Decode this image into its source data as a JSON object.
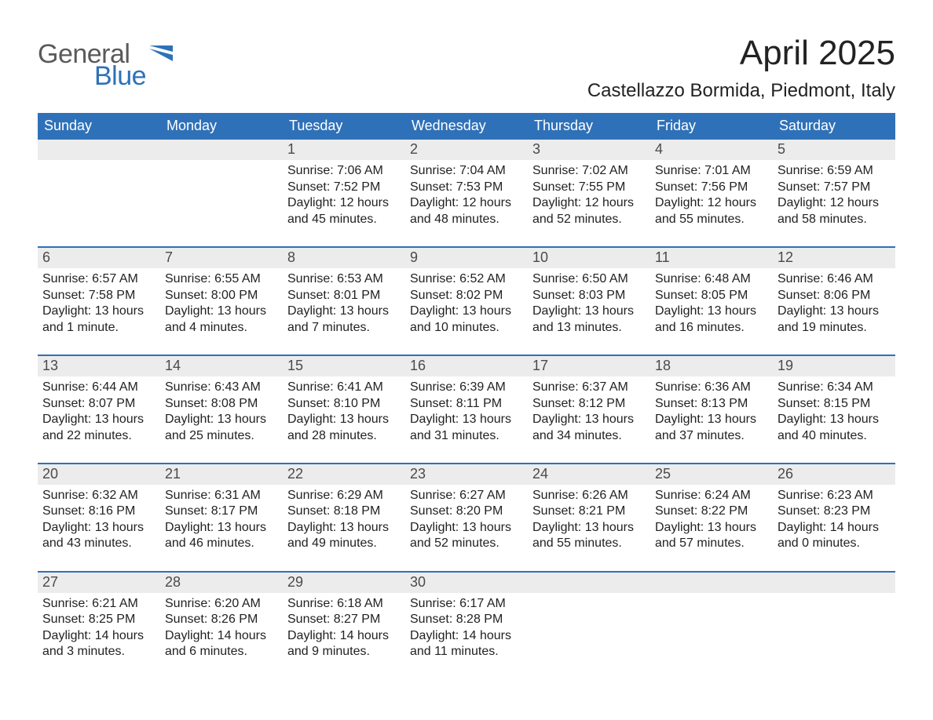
{
  "brand": {
    "word1": "General",
    "word2": "Blue",
    "color_gray": "#5a5a5a",
    "color_blue": "#2f71b8"
  },
  "title": "April 2025",
  "subtitle": "Castellazzo Bormida, Piedmont, Italy",
  "colors": {
    "header_bg": "#2f71b8",
    "header_text": "#ffffff",
    "daynum_bg": "#ececec",
    "daynum_text": "#4a4a4a",
    "body_text": "#222222",
    "page_bg": "#ffffff",
    "row_divider": "#2f71b8"
  },
  "typography": {
    "title_fontsize": 44,
    "subtitle_fontsize": 24,
    "dayheader_fontsize": 18,
    "daynum_fontsize": 18,
    "body_fontsize": 16,
    "font_family": "Arial"
  },
  "day_headers": [
    "Sunday",
    "Monday",
    "Tuesday",
    "Wednesday",
    "Thursday",
    "Friday",
    "Saturday"
  ],
  "weeks": [
    [
      {
        "empty": true
      },
      {
        "empty": true
      },
      {
        "num": "1",
        "sunrise": "Sunrise: 7:06 AM",
        "sunset": "Sunset: 7:52 PM",
        "daylight": "Daylight: 12 hours and 45 minutes."
      },
      {
        "num": "2",
        "sunrise": "Sunrise: 7:04 AM",
        "sunset": "Sunset: 7:53 PM",
        "daylight": "Daylight: 12 hours and 48 minutes."
      },
      {
        "num": "3",
        "sunrise": "Sunrise: 7:02 AM",
        "sunset": "Sunset: 7:55 PM",
        "daylight": "Daylight: 12 hours and 52 minutes."
      },
      {
        "num": "4",
        "sunrise": "Sunrise: 7:01 AM",
        "sunset": "Sunset: 7:56 PM",
        "daylight": "Daylight: 12 hours and 55 minutes."
      },
      {
        "num": "5",
        "sunrise": "Sunrise: 6:59 AM",
        "sunset": "Sunset: 7:57 PM",
        "daylight": "Daylight: 12 hours and 58 minutes."
      }
    ],
    [
      {
        "num": "6",
        "sunrise": "Sunrise: 6:57 AM",
        "sunset": "Sunset: 7:58 PM",
        "daylight": "Daylight: 13 hours and 1 minute."
      },
      {
        "num": "7",
        "sunrise": "Sunrise: 6:55 AM",
        "sunset": "Sunset: 8:00 PM",
        "daylight": "Daylight: 13 hours and 4 minutes."
      },
      {
        "num": "8",
        "sunrise": "Sunrise: 6:53 AM",
        "sunset": "Sunset: 8:01 PM",
        "daylight": "Daylight: 13 hours and 7 minutes."
      },
      {
        "num": "9",
        "sunrise": "Sunrise: 6:52 AM",
        "sunset": "Sunset: 8:02 PM",
        "daylight": "Daylight: 13 hours and 10 minutes."
      },
      {
        "num": "10",
        "sunrise": "Sunrise: 6:50 AM",
        "sunset": "Sunset: 8:03 PM",
        "daylight": "Daylight: 13 hours and 13 minutes."
      },
      {
        "num": "11",
        "sunrise": "Sunrise: 6:48 AM",
        "sunset": "Sunset: 8:05 PM",
        "daylight": "Daylight: 13 hours and 16 minutes."
      },
      {
        "num": "12",
        "sunrise": "Sunrise: 6:46 AM",
        "sunset": "Sunset: 8:06 PM",
        "daylight": "Daylight: 13 hours and 19 minutes."
      }
    ],
    [
      {
        "num": "13",
        "sunrise": "Sunrise: 6:44 AM",
        "sunset": "Sunset: 8:07 PM",
        "daylight": "Daylight: 13 hours and 22 minutes."
      },
      {
        "num": "14",
        "sunrise": "Sunrise: 6:43 AM",
        "sunset": "Sunset: 8:08 PM",
        "daylight": "Daylight: 13 hours and 25 minutes."
      },
      {
        "num": "15",
        "sunrise": "Sunrise: 6:41 AM",
        "sunset": "Sunset: 8:10 PM",
        "daylight": "Daylight: 13 hours and 28 minutes."
      },
      {
        "num": "16",
        "sunrise": "Sunrise: 6:39 AM",
        "sunset": "Sunset: 8:11 PM",
        "daylight": "Daylight: 13 hours and 31 minutes."
      },
      {
        "num": "17",
        "sunrise": "Sunrise: 6:37 AM",
        "sunset": "Sunset: 8:12 PM",
        "daylight": "Daylight: 13 hours and 34 minutes."
      },
      {
        "num": "18",
        "sunrise": "Sunrise: 6:36 AM",
        "sunset": "Sunset: 8:13 PM",
        "daylight": "Daylight: 13 hours and 37 minutes."
      },
      {
        "num": "19",
        "sunrise": "Sunrise: 6:34 AM",
        "sunset": "Sunset: 8:15 PM",
        "daylight": "Daylight: 13 hours and 40 minutes."
      }
    ],
    [
      {
        "num": "20",
        "sunrise": "Sunrise: 6:32 AM",
        "sunset": "Sunset: 8:16 PM",
        "daylight": "Daylight: 13 hours and 43 minutes."
      },
      {
        "num": "21",
        "sunrise": "Sunrise: 6:31 AM",
        "sunset": "Sunset: 8:17 PM",
        "daylight": "Daylight: 13 hours and 46 minutes."
      },
      {
        "num": "22",
        "sunrise": "Sunrise: 6:29 AM",
        "sunset": "Sunset: 8:18 PM",
        "daylight": "Daylight: 13 hours and 49 minutes."
      },
      {
        "num": "23",
        "sunrise": "Sunrise: 6:27 AM",
        "sunset": "Sunset: 8:20 PM",
        "daylight": "Daylight: 13 hours and 52 minutes."
      },
      {
        "num": "24",
        "sunrise": "Sunrise: 6:26 AM",
        "sunset": "Sunset: 8:21 PM",
        "daylight": "Daylight: 13 hours and 55 minutes."
      },
      {
        "num": "25",
        "sunrise": "Sunrise: 6:24 AM",
        "sunset": "Sunset: 8:22 PM",
        "daylight": "Daylight: 13 hours and 57 minutes."
      },
      {
        "num": "26",
        "sunrise": "Sunrise: 6:23 AM",
        "sunset": "Sunset: 8:23 PM",
        "daylight": "Daylight: 14 hours and 0 minutes."
      }
    ],
    [
      {
        "num": "27",
        "sunrise": "Sunrise: 6:21 AM",
        "sunset": "Sunset: 8:25 PM",
        "daylight": "Daylight: 14 hours and 3 minutes."
      },
      {
        "num": "28",
        "sunrise": "Sunrise: 6:20 AM",
        "sunset": "Sunset: 8:26 PM",
        "daylight": "Daylight: 14 hours and 6 minutes."
      },
      {
        "num": "29",
        "sunrise": "Sunrise: 6:18 AM",
        "sunset": "Sunset: 8:27 PM",
        "daylight": "Daylight: 14 hours and 9 minutes."
      },
      {
        "num": "30",
        "sunrise": "Sunrise: 6:17 AM",
        "sunset": "Sunset: 8:28 PM",
        "daylight": "Daylight: 14 hours and 11 minutes."
      },
      {
        "empty": true
      },
      {
        "empty": true
      },
      {
        "empty": true
      }
    ]
  ]
}
